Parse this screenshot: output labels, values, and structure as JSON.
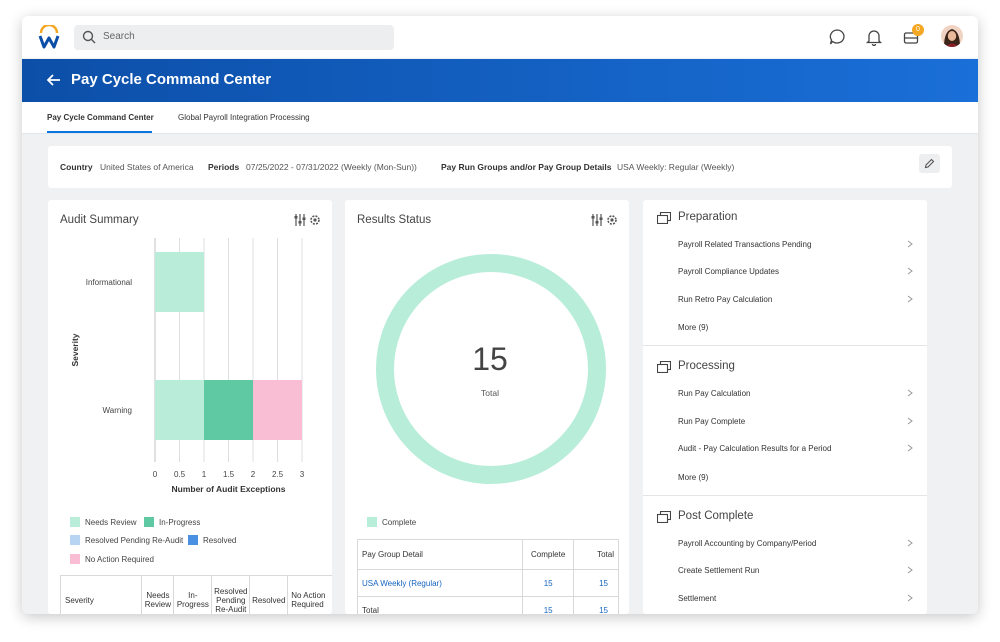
{
  "topbar": {
    "search_placeholder": "Search",
    "inbox_count": "0"
  },
  "header": {
    "title": "Pay Cycle Command Center"
  },
  "tabs": [
    {
      "label": "Pay Cycle Command Center"
    },
    {
      "label": "Global Payroll Integration Processing"
    }
  ],
  "filter": {
    "country_label": "Country",
    "country_value": "United States of America",
    "periods_label": "Periods",
    "periods_value": "07/25/2022 - 07/31/2022  (Weekly (Mon-Sun))",
    "group_label": "Pay Run Groups and/or Pay Group Details",
    "group_value": "USA Weekly: Regular (Weekly)"
  },
  "audit": {
    "title": "Audit Summary",
    "legend": [
      "Needs Review",
      "In-Progress",
      "Resolved Pending Re-Audit",
      "Resolved",
      "No Action Required"
    ],
    "table_headers": [
      "Severity",
      "Needs Review",
      "In-Progress",
      "Resolved Pending Re-Audit",
      "Resolved",
      "No Action Required"
    ]
  },
  "chart_data": {
    "type": "bar",
    "orientation": "horizontal-stacked",
    "categories": [
      "Informational",
      "Warning"
    ],
    "series": [
      {
        "name": "Needs Review",
        "values": [
          1,
          1
        ]
      },
      {
        "name": "In-Progress",
        "values": [
          0,
          1
        ]
      },
      {
        "name": "Resolved Pending Re-Audit",
        "values": [
          0,
          0
        ]
      },
      {
        "name": "Resolved",
        "values": [
          0,
          0
        ]
      },
      {
        "name": "No Action Required",
        "values": [
          0,
          1
        ]
      }
    ],
    "xlabel": "Number of Audit Exceptions",
    "ylabel": "Severity",
    "xticks": [
      "0",
      "0.5",
      "1",
      "1.5",
      "2",
      "2.5",
      "3"
    ],
    "xlim": [
      0,
      3
    ],
    "grid": true,
    "colors": [
      "#b9ecd9",
      "#5ec9a2",
      "#b8d4f3",
      "#4a90e2",
      "#f9bdd4"
    ]
  },
  "results": {
    "title": "Results Status",
    "total_value": "15",
    "total_label": "Total",
    "legend": "Complete",
    "donut_color": "#b7edd9",
    "table_headers": [
      "Pay Group Detail",
      "Complete",
      "Total"
    ],
    "rows": [
      {
        "detail": "USA Weekly (Regular)",
        "complete": "15",
        "total": "15"
      },
      {
        "detail": "Total",
        "complete": "15",
        "total": "15"
      }
    ]
  },
  "right": {
    "sections": [
      {
        "title": "Preparation",
        "items": [
          "Payroll Related Transactions Pending",
          "Payroll Compliance Updates",
          "Run Retro Pay Calculation"
        ],
        "more": "More (9)"
      },
      {
        "title": "Processing",
        "items": [
          "Run Pay Calculation",
          "Run Pay Complete",
          "Audit - Pay Calculation Results for a Period"
        ],
        "more": "More (9)"
      },
      {
        "title": "Post Complete",
        "items": [
          "Payroll Accounting by Company/Period",
          "Create Settlement Run",
          "Settlement"
        ]
      }
    ]
  },
  "colors": {
    "header": "#0c4fa8",
    "accent": "#0875e1",
    "link": "#1565c0"
  }
}
